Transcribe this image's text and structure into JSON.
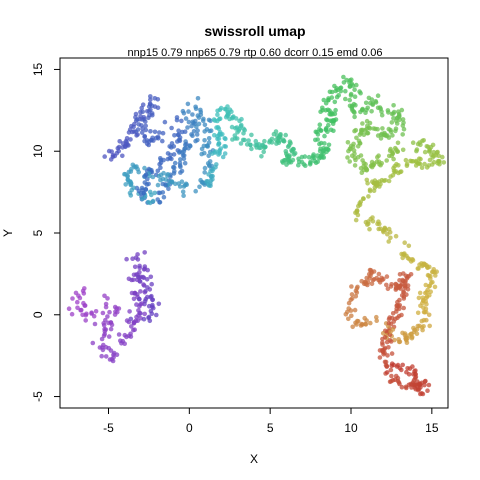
{
  "chart_data": {
    "type": "scatter",
    "title": "swissroll umap",
    "subtitle": "nnp15 0.79 nnp65 0.79 rtp 0.60 dcorr 0.15 emd 0.06",
    "xlabel": "X",
    "ylabel": "Y",
    "xlim": [
      -8,
      16
    ],
    "ylim": [
      -5.7,
      15.7
    ],
    "xticks": [
      -5,
      0,
      5,
      10,
      15
    ],
    "yticks": [
      -5,
      0,
      5,
      10,
      15
    ],
    "grid": false,
    "legend": "none",
    "color_ramp": [
      "#a040c8",
      "#6040c0",
      "#3a6ac0",
      "#40c0c0",
      "#40c060",
      "#9ec040",
      "#d0b040",
      "#c86040",
      "#c03a30"
    ],
    "clusters": [
      {
        "name": "left-island",
        "color_range": [
          0.0,
          0.12
        ],
        "path": [
          [
            -6.5,
            1.8
          ],
          [
            -7.0,
            0.5
          ],
          [
            -6.2,
            0.0
          ],
          [
            -5.5,
            0.2
          ],
          [
            -5.0,
            0.8
          ],
          [
            -4.5,
            0.0
          ],
          [
            -5.2,
            -1.0
          ],
          [
            -5.5,
            -2.0
          ],
          [
            -5.0,
            -2.5
          ],
          [
            -4.0,
            -1.8
          ],
          [
            -3.5,
            -0.5
          ],
          [
            -3.0,
            0.5
          ],
          [
            -3.2,
            1.5
          ],
          [
            -3.5,
            2.2
          ],
          [
            -3.0,
            3.0
          ],
          [
            -3.2,
            3.5
          ],
          [
            -2.8,
            2.5
          ],
          [
            -2.6,
            1.5
          ],
          [
            -2.5,
            1.0
          ],
          [
            -2.5,
            0.2
          ],
          [
            -3.0,
            -0.5
          ]
        ],
        "spread": 0.25,
        "count": 170
      },
      {
        "name": "upper-left-loops",
        "color_range": [
          0.18,
          0.34
        ],
        "path": [
          [
            -4.5,
            9.7
          ],
          [
            -5.0,
            9.8
          ],
          [
            -4.0,
            10.5
          ],
          [
            -3.5,
            11.0
          ],
          [
            -3.0,
            12.5
          ],
          [
            -2.5,
            13.0
          ],
          [
            -2.0,
            13.2
          ],
          [
            -2.8,
            12.0
          ],
          [
            -3.0,
            11.0
          ],
          [
            -2.0,
            10.5
          ],
          [
            -1.5,
            11.5
          ],
          [
            -1.0,
            12.0
          ],
          [
            -0.5,
            10.8
          ],
          [
            -1.5,
            9.5
          ],
          [
            -2.5,
            8.5
          ],
          [
            -3.0,
            7.5
          ],
          [
            -2.5,
            7.0
          ],
          [
            -1.5,
            7.5
          ],
          [
            -1.0,
            8.5
          ],
          [
            -0.5,
            9.5
          ],
          [
            0.0,
            10.5
          ],
          [
            0.5,
            11.0
          ],
          [
            0.0,
            12.0
          ],
          [
            -0.2,
            12.5
          ],
          [
            0.5,
            12.8
          ],
          [
            1.0,
            11.5
          ],
          [
            1.2,
            9.5
          ],
          [
            0.8,
            8.0
          ],
          [
            0.0,
            7.5
          ],
          [
            -0.5,
            8.0
          ],
          [
            -3.5,
            9.0
          ],
          [
            -4.0,
            8.2
          ],
          [
            -3.5,
            7.6
          ],
          [
            -2.5,
            7.2
          ],
          [
            -1.8,
            7.0
          ]
        ],
        "spread": 0.2,
        "count": 330
      },
      {
        "name": "upper-middle-spiral",
        "color_range": [
          0.34,
          0.48
        ],
        "path": [
          [
            1.0,
            8.0
          ],
          [
            1.5,
            8.8
          ],
          [
            1.5,
            9.5
          ],
          [
            2.0,
            10.0
          ],
          [
            2.0,
            11.0
          ],
          [
            1.5,
            12.0
          ],
          [
            2.2,
            12.4
          ],
          [
            2.8,
            12.0
          ],
          [
            3.2,
            11.5
          ],
          [
            3.0,
            11.0
          ],
          [
            4.0,
            10.5
          ],
          [
            4.5,
            10.0
          ],
          [
            5.0,
            10.5
          ],
          [
            5.5,
            11.0
          ],
          [
            6.0,
            10.5
          ],
          [
            6.5,
            10.0
          ],
          [
            6.0,
            9.5
          ],
          [
            7.0,
            9.4
          ],
          [
            8.0,
            9.5
          ]
        ],
        "spread": 0.2,
        "count": 180
      },
      {
        "name": "upper-right-loops",
        "color_range": [
          0.48,
          0.64
        ],
        "path": [
          [
            8.0,
            9.5
          ],
          [
            8.5,
            10.0
          ],
          [
            8.0,
            11.0
          ],
          [
            8.5,
            11.5
          ],
          [
            9.0,
            12.0
          ],
          [
            8.5,
            12.8
          ],
          [
            9.0,
            13.5
          ],
          [
            9.5,
            14.0
          ],
          [
            10.0,
            14.3
          ],
          [
            10.5,
            13.8
          ],
          [
            10.0,
            13.0
          ],
          [
            10.5,
            12.3
          ],
          [
            11.0,
            12.8
          ],
          [
            11.5,
            13.0
          ],
          [
            12.0,
            12.5
          ],
          [
            12.5,
            12.0
          ],
          [
            13.0,
            12.5
          ],
          [
            13.0,
            11.5
          ],
          [
            12.0,
            11.0
          ],
          [
            11.0,
            11.5
          ],
          [
            10.5,
            11.0
          ],
          [
            10.0,
            10.0
          ],
          [
            10.5,
            9.5
          ],
          [
            11.0,
            9.0
          ],
          [
            12.0,
            9.5
          ],
          [
            13.0,
            10.0
          ],
          [
            14.0,
            10.2
          ],
          [
            14.5,
            10.5
          ],
          [
            15.0,
            10.0
          ],
          [
            15.5,
            9.7
          ],
          [
            14.8,
            9.2
          ],
          [
            14.2,
            9.5
          ],
          [
            13.5,
            9.2
          ],
          [
            12.5,
            8.5
          ],
          [
            11.5,
            8.0
          ]
        ],
        "spread": 0.22,
        "count": 330
      },
      {
        "name": "neck",
        "color_range": [
          0.64,
          0.72
        ],
        "path": [
          [
            11.5,
            8.0
          ],
          [
            11.0,
            7.5
          ],
          [
            10.5,
            6.5
          ],
          [
            10.5,
            5.8
          ],
          [
            11.5,
            5.5
          ],
          [
            12.2,
            5.0
          ],
          [
            13.0,
            4.2
          ],
          [
            13.5,
            3.5
          ],
          [
            14.0,
            3.0
          ]
        ],
        "spread": 0.18,
        "count": 60
      },
      {
        "name": "lower-right-loops",
        "color_range": [
          0.72,
          1.0
        ],
        "path": [
          [
            14.0,
            3.0
          ],
          [
            15.0,
            2.8
          ],
          [
            15.2,
            2.0
          ],
          [
            14.5,
            1.0
          ],
          [
            14.5,
            0.0
          ],
          [
            14.8,
            -0.5
          ],
          [
            14.0,
            -1.0
          ],
          [
            13.5,
            -1.5
          ],
          [
            12.8,
            -1.5
          ],
          [
            12.0,
            -1.0
          ],
          [
            11.5,
            -0.5
          ],
          [
            10.5,
            -0.5
          ],
          [
            10.0,
            0.0
          ],
          [
            10.0,
            0.8
          ],
          [
            10.5,
            1.5
          ],
          [
            11.0,
            2.0
          ],
          [
            11.5,
            2.5
          ],
          [
            12.0,
            2.0
          ],
          [
            12.5,
            1.5
          ],
          [
            13.0,
            1.8
          ],
          [
            13.5,
            2.5
          ],
          [
            13.0,
            0.5
          ],
          [
            12.5,
            -0.5
          ],
          [
            12.0,
            -2.5
          ],
          [
            12.5,
            -3.5
          ],
          [
            12.8,
            -4.2
          ],
          [
            13.5,
            -4.5
          ],
          [
            14.0,
            -4.0
          ],
          [
            14.5,
            -4.7
          ],
          [
            13.8,
            -3.5
          ],
          [
            13.0,
            -3.0
          ],
          [
            12.2,
            -3.5
          ]
        ],
        "spread": 0.2,
        "count": 310
      }
    ]
  }
}
